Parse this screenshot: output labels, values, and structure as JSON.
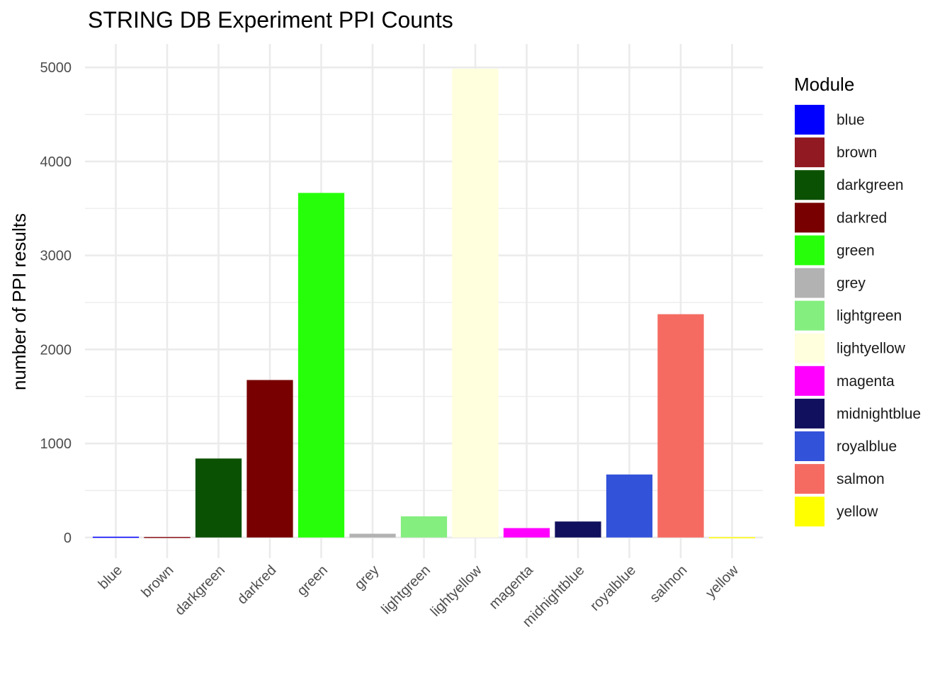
{
  "chart_data": {
    "type": "bar",
    "title": "STRING DB Experiment PPI Counts",
    "xlabel": "",
    "ylabel": "number of PPI results",
    "categories": [
      "blue",
      "brown",
      "darkgreen",
      "darkred",
      "green",
      "grey",
      "lightgreen",
      "lightyellow",
      "magenta",
      "midnightblue",
      "royalblue",
      "salmon",
      "yellow"
    ],
    "values": [
      8,
      6,
      840,
      1675,
      3665,
      40,
      225,
      4985,
      100,
      170,
      670,
      2375,
      3
    ],
    "colors": [
      "#0000FF",
      "#911A22",
      "#0B5103",
      "#780000",
      "#27FF0A",
      "#B2B2B2",
      "#84EE7F",
      "#FFFFDD",
      "#FF00FF",
      "#11105E",
      "#3352DA",
      "#F56B62",
      "#FFFF00"
    ],
    "ylim": [
      -220,
      5250
    ],
    "yticks": [
      0,
      1000,
      2000,
      3000,
      4000,
      5000
    ],
    "grid": true,
    "legend": {
      "title": "Module",
      "position": "right",
      "entries": [
        "blue",
        "brown",
        "darkgreen",
        "darkred",
        "green",
        "grey",
        "lightgreen",
        "lightyellow",
        "magenta",
        "midnightblue",
        "royalblue",
        "salmon",
        "yellow"
      ]
    }
  }
}
